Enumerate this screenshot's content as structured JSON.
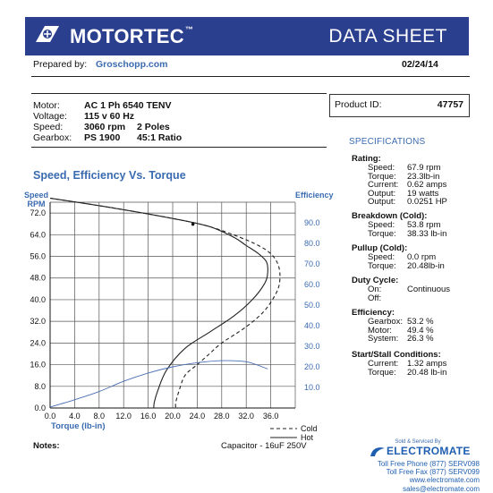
{
  "header": {
    "brand": "MOTORTEC",
    "trademark": "™",
    "title": "DATA SHEET",
    "brand_color": "#2b3f8f"
  },
  "prepared": {
    "label": "Prepared by:",
    "value": "Groschopp.com",
    "date": "02/24/14"
  },
  "motor_info": {
    "motor_label": "Motor:",
    "motor_value": "AC 1 Ph  6540 TENV",
    "voltage_label": "Voltage:",
    "voltage_value": "115 v 60 Hz",
    "speed_label": "Speed:",
    "speed_value": "3060 rpm",
    "speed_poles": "2 Poles",
    "gearbox_label": "Gearbox:",
    "gearbox_value": "PS 1900",
    "gearbox_ratio": "45:1 Ratio"
  },
  "product": {
    "label": "Product ID:",
    "value": "47757"
  },
  "specs": {
    "title": "SPECIFICATIONS",
    "rating": {
      "head": "Rating:",
      "rows": [
        [
          "Speed:",
          "67.9 rpm"
        ],
        [
          "Torque:",
          "23.3lb-in"
        ],
        [
          "Current:",
          "0.62 amps"
        ],
        [
          "Output:",
          "19 watts"
        ],
        [
          "Output:",
          "0.0251 HP"
        ]
      ]
    },
    "breakdown": {
      "head": "Breakdown (Cold):",
      "rows": [
        [
          "Speed:",
          "53.8 rpm"
        ],
        [
          "Torque:",
          "38.33 lb-in"
        ]
      ]
    },
    "pullup": {
      "head": "Pullup (Cold):",
      "rows": [
        [
          "Speed:",
          "0.0 rpm"
        ],
        [
          "Torque:",
          "20.48lb-in"
        ]
      ]
    },
    "duty": {
      "head": "Duty Cycle:",
      "rows": [
        [
          "On:",
          "Continuous"
        ],
        [
          "Off:",
          ""
        ]
      ]
    },
    "efficiency": {
      "head": "Efficiency:",
      "rows": [
        [
          "Gearbox:",
          "53.2 %"
        ],
        [
          "Motor:",
          "49.4 %"
        ],
        [
          "System:",
          "26.3 %"
        ]
      ]
    },
    "startstall": {
      "head": "Start/Stall Conditions:",
      "rows": [
        [
          "Current:",
          "1.32 amps"
        ],
        [
          "Torque:",
          "20.48 lb-in"
        ]
      ]
    }
  },
  "chart_title": "Speed, Efficiency Vs. Torque",
  "chart_data": {
    "type": "line",
    "title": "Speed, Efficiency Vs. Torque",
    "xlabel": "Torque  (lb-in)",
    "ylabel_left": "Speed RPM",
    "ylabel_left_line1": "Speed",
    "ylabel_left_line2": "RPM",
    "ylabel_right": "Efficiency",
    "xlim": [
      0,
      40
    ],
    "ylim_left": [
      0,
      76
    ],
    "ylim_right": [
      0,
      100
    ],
    "x_ticks": [
      "0.0",
      "4.0",
      "8.0",
      "12.0",
      "16.0",
      "20.0",
      "24.0",
      "28.0",
      "32.0",
      "36.0"
    ],
    "y_left_ticks": [
      "0.0",
      "8.0",
      "16.0",
      "24.0",
      "32.0",
      "40.0",
      "48.0",
      "56.0",
      "64.0",
      "72.0"
    ],
    "y_right_ticks": [
      "10.0",
      "20.0",
      "30.0",
      "40.0",
      "50.0",
      "60.0",
      "70.0",
      "80.0",
      "90.0"
    ],
    "grid": true,
    "legend_position": "bottom-right",
    "series": [
      {
        "name": "Cold",
        "axis": "left",
        "style": "dashed",
        "color": "#222222",
        "x": [
          0,
          10,
          20,
          26,
          31,
          34,
          36,
          37.2,
          37.5,
          37,
          35,
          32,
          28,
          26,
          24,
          22,
          21,
          20.5,
          20.5
        ],
        "y": [
          77.5,
          74,
          70,
          67,
          63,
          60,
          57,
          53,
          48,
          43,
          36,
          30,
          24,
          20,
          16,
          12,
          6,
          2,
          0
        ]
      },
      {
        "name": "Hot",
        "axis": "left",
        "style": "solid",
        "color": "#222222",
        "x": [
          0,
          10,
          20,
          26,
          30,
          32,
          34,
          35.3,
          35.5,
          35,
          33,
          30,
          26,
          22,
          19,
          17.5,
          17,
          16.9
        ],
        "y": [
          77.5,
          74,
          70,
          67,
          63,
          60,
          57,
          54,
          50,
          46,
          40,
          34,
          28,
          22,
          14,
          6,
          2,
          0
        ]
      },
      {
        "name": "Efficiency",
        "axis": "right",
        "style": "solid",
        "color": "#4a6fb5",
        "x": [
          0,
          4,
          8,
          12,
          16,
          20,
          24,
          28,
          32,
          35.5
        ],
        "y": [
          0.5,
          4,
          8,
          13,
          17,
          20,
          22,
          23,
          22.5,
          19
        ]
      }
    ]
  },
  "legend": {
    "cold": "Cold",
    "hot": "Hot"
  },
  "notes": {
    "label": "Notes:",
    "capacitor": "Capacitor - 16uF 250V"
  },
  "footer": {
    "sold_by": "Sold & Serviced By",
    "company": "ELECTROMATE",
    "phone": "Toll Free Phone  (877) SERV098",
    "fax": "Toll Free Fax  (877) SERV099",
    "web": "www.electromate.com",
    "email": "sales@electromate.com"
  }
}
